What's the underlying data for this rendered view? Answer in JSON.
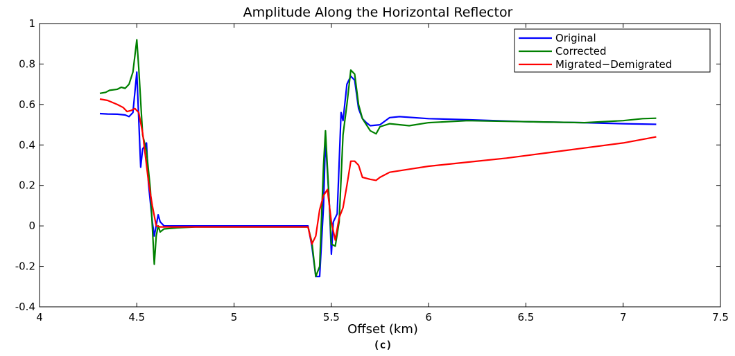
{
  "chart_data": {
    "type": "line",
    "title": "Amplitude Along the Horizontal Reflector",
    "xlabel": "Offset (km)",
    "ylabel": "",
    "caption": "(c)",
    "xlim": [
      4,
      7.5
    ],
    "ylim": [
      -0.4,
      1
    ],
    "xticks": [
      4,
      4.5,
      5,
      5.5,
      6,
      6.5,
      7,
      7.5
    ],
    "xtick_labels": [
      "4",
      "4.5",
      "5",
      "5.5",
      "6",
      "6.5",
      "7",
      "7.5"
    ],
    "yticks": [
      -0.4,
      -0.2,
      0,
      0.2,
      0.4,
      0.6,
      0.8,
      1
    ],
    "ytick_labels": [
      "-0.4",
      "-0.2",
      "0",
      "0.2",
      "0.4",
      "0.6",
      "0.8",
      "1"
    ],
    "grid": false,
    "legend_position": "top-right",
    "series": [
      {
        "name": "Original",
        "color": "#0000ff",
        "x": [
          4.31,
          4.35,
          4.4,
          4.44,
          4.46,
          4.48,
          4.5,
          4.52,
          4.53,
          4.55,
          4.56,
          4.58,
          4.59,
          4.61,
          4.62,
          4.64,
          4.7,
          4.8,
          5.0,
          5.2,
          5.38,
          5.4,
          5.42,
          5.44,
          5.46,
          5.47,
          5.49,
          5.5,
          5.51,
          5.53,
          5.55,
          5.56,
          5.58,
          5.6,
          5.62,
          5.64,
          5.66,
          5.68,
          5.7,
          5.75,
          5.8,
          5.85,
          6.0,
          6.2,
          6.5,
          6.8,
          7.0,
          7.17
        ],
        "y": [
          0.555,
          0.553,
          0.552,
          0.548,
          0.54,
          0.56,
          0.76,
          0.29,
          0.38,
          0.41,
          0.21,
          0.02,
          -0.05,
          0.055,
          0.02,
          0.0,
          0.0,
          0.0,
          0.0,
          0.0,
          0.0,
          -0.1,
          -0.25,
          -0.25,
          0.1,
          0.43,
          0.1,
          -0.14,
          0.02,
          0.06,
          0.56,
          0.52,
          0.7,
          0.74,
          0.72,
          0.58,
          0.53,
          0.51,
          0.495,
          0.5,
          0.535,
          0.54,
          0.53,
          0.525,
          0.515,
          0.51,
          0.505,
          0.502
        ]
      },
      {
        "name": "Corrected",
        "color": "#008000",
        "x": [
          4.31,
          4.34,
          4.36,
          4.4,
          4.42,
          4.44,
          4.46,
          4.48,
          4.5,
          4.51,
          4.53,
          4.55,
          4.57,
          4.59,
          4.6,
          4.61,
          4.62,
          4.64,
          4.7,
          4.8,
          5.0,
          5.2,
          5.38,
          5.4,
          5.42,
          5.44,
          5.46,
          5.47,
          5.49,
          5.5,
          5.52,
          5.54,
          5.56,
          5.58,
          5.6,
          5.62,
          5.64,
          5.66,
          5.68,
          5.7,
          5.73,
          5.75,
          5.8,
          5.9,
          6.0,
          6.2,
          6.5,
          6.8,
          7.0,
          7.1,
          7.17
        ],
        "y": [
          0.655,
          0.66,
          0.67,
          0.675,
          0.685,
          0.68,
          0.7,
          0.76,
          0.92,
          0.78,
          0.45,
          0.37,
          0.18,
          -0.19,
          -0.05,
          0.0,
          -0.03,
          -0.015,
          -0.01,
          -0.005,
          -0.005,
          -0.005,
          -0.005,
          -0.08,
          -0.25,
          -0.2,
          0.3,
          0.47,
          0.1,
          -0.09,
          -0.1,
          0.02,
          0.45,
          0.6,
          0.77,
          0.75,
          0.6,
          0.53,
          0.5,
          0.47,
          0.455,
          0.49,
          0.505,
          0.495,
          0.51,
          0.52,
          0.515,
          0.51,
          0.52,
          0.53,
          0.532
        ]
      },
      {
        "name": "Migrated−Demigrated",
        "color": "#ff0000",
        "x": [
          4.31,
          4.35,
          4.4,
          4.43,
          4.45,
          4.47,
          4.49,
          4.51,
          4.53,
          4.56,
          4.58,
          4.6,
          4.62,
          4.64,
          4.7,
          4.8,
          5.0,
          5.2,
          5.38,
          5.4,
          5.42,
          5.44,
          5.46,
          5.48,
          5.5,
          5.52,
          5.54,
          5.56,
          5.58,
          5.6,
          5.62,
          5.64,
          5.66,
          5.7,
          5.73,
          5.75,
          5.8,
          5.9,
          6.0,
          6.2,
          6.4,
          6.6,
          6.8,
          7.0,
          7.17
        ],
        "y": [
          0.627,
          0.62,
          0.6,
          0.585,
          0.565,
          0.57,
          0.58,
          0.56,
          0.46,
          0.22,
          0.1,
          0.0,
          -0.005,
          -0.005,
          -0.005,
          -0.005,
          -0.005,
          -0.005,
          -0.005,
          -0.09,
          -0.05,
          0.08,
          0.15,
          0.18,
          0.02,
          -0.07,
          0.04,
          0.09,
          0.2,
          0.32,
          0.32,
          0.3,
          0.24,
          0.23,
          0.225,
          0.24,
          0.265,
          0.28,
          0.295,
          0.315,
          0.335,
          0.36,
          0.385,
          0.41,
          0.44
        ]
      }
    ]
  }
}
